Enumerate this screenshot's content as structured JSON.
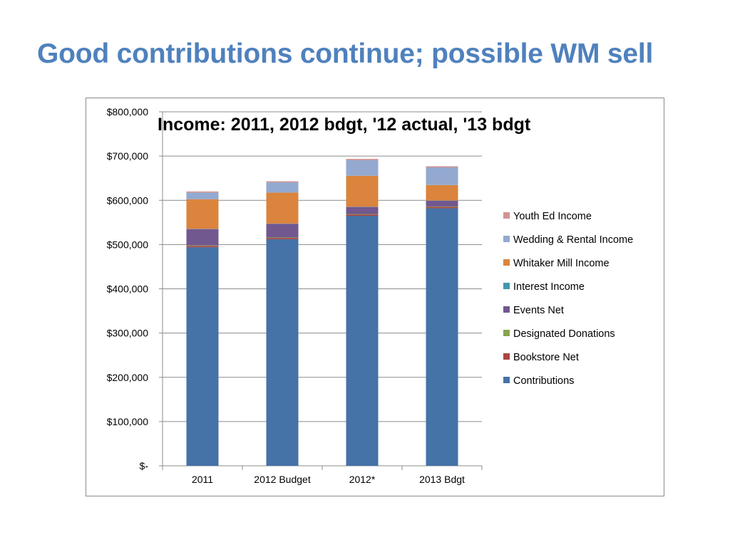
{
  "slide": {
    "title": "Good contributions continue; possible WM sell"
  },
  "chart_data": {
    "type": "bar",
    "stacked": true,
    "title": "Income: 2011, 2012 bdgt, '12 actual, '13 bdgt",
    "xlabel": "",
    "ylabel": "",
    "ylim": [
      0,
      800000
    ],
    "y_ticks": [
      0,
      100000,
      200000,
      300000,
      400000,
      500000,
      600000,
      700000,
      800000
    ],
    "y_tick_labels": [
      "$-",
      "$100,000",
      "$200,000",
      "$300,000",
      "$400,000",
      "$500,000",
      "$600,000",
      "$700,000",
      "$800,000"
    ],
    "grid": true,
    "legend_position": "right",
    "categories": [
      "2011",
      "2012 Budget",
      "2012*",
      "2013 Bdgt"
    ],
    "series": [
      {
        "name": "Contributions",
        "color": "#4572a7",
        "values": [
          494000,
          512000,
          565000,
          582000
        ]
      },
      {
        "name": "Bookstore Net",
        "color": "#aa4643",
        "values": [
          3000,
          3000,
          3000,
          3000
        ]
      },
      {
        "name": "Designated Donations",
        "color": "#89a54e",
        "values": [
          1000,
          1000,
          1000,
          1000
        ]
      },
      {
        "name": "Events Net",
        "color": "#71588f",
        "values": [
          37000,
          31000,
          16000,
          13000
        ]
      },
      {
        "name": "Interest Income",
        "color": "#4198af",
        "values": [
          500,
          500,
          500,
          500
        ]
      },
      {
        "name": "Whitaker Mill Income",
        "color": "#db843d",
        "values": [
          67000,
          70000,
          70000,
          35000
        ]
      },
      {
        "name": "Wedding & Rental Income",
        "color": "#93a9cf",
        "values": [
          15000,
          23000,
          35000,
          40000
        ]
      },
      {
        "name": "Youth Ed Income",
        "color": "#d19392",
        "values": [
          2500,
          2500,
          3000,
          2500
        ]
      }
    ]
  }
}
